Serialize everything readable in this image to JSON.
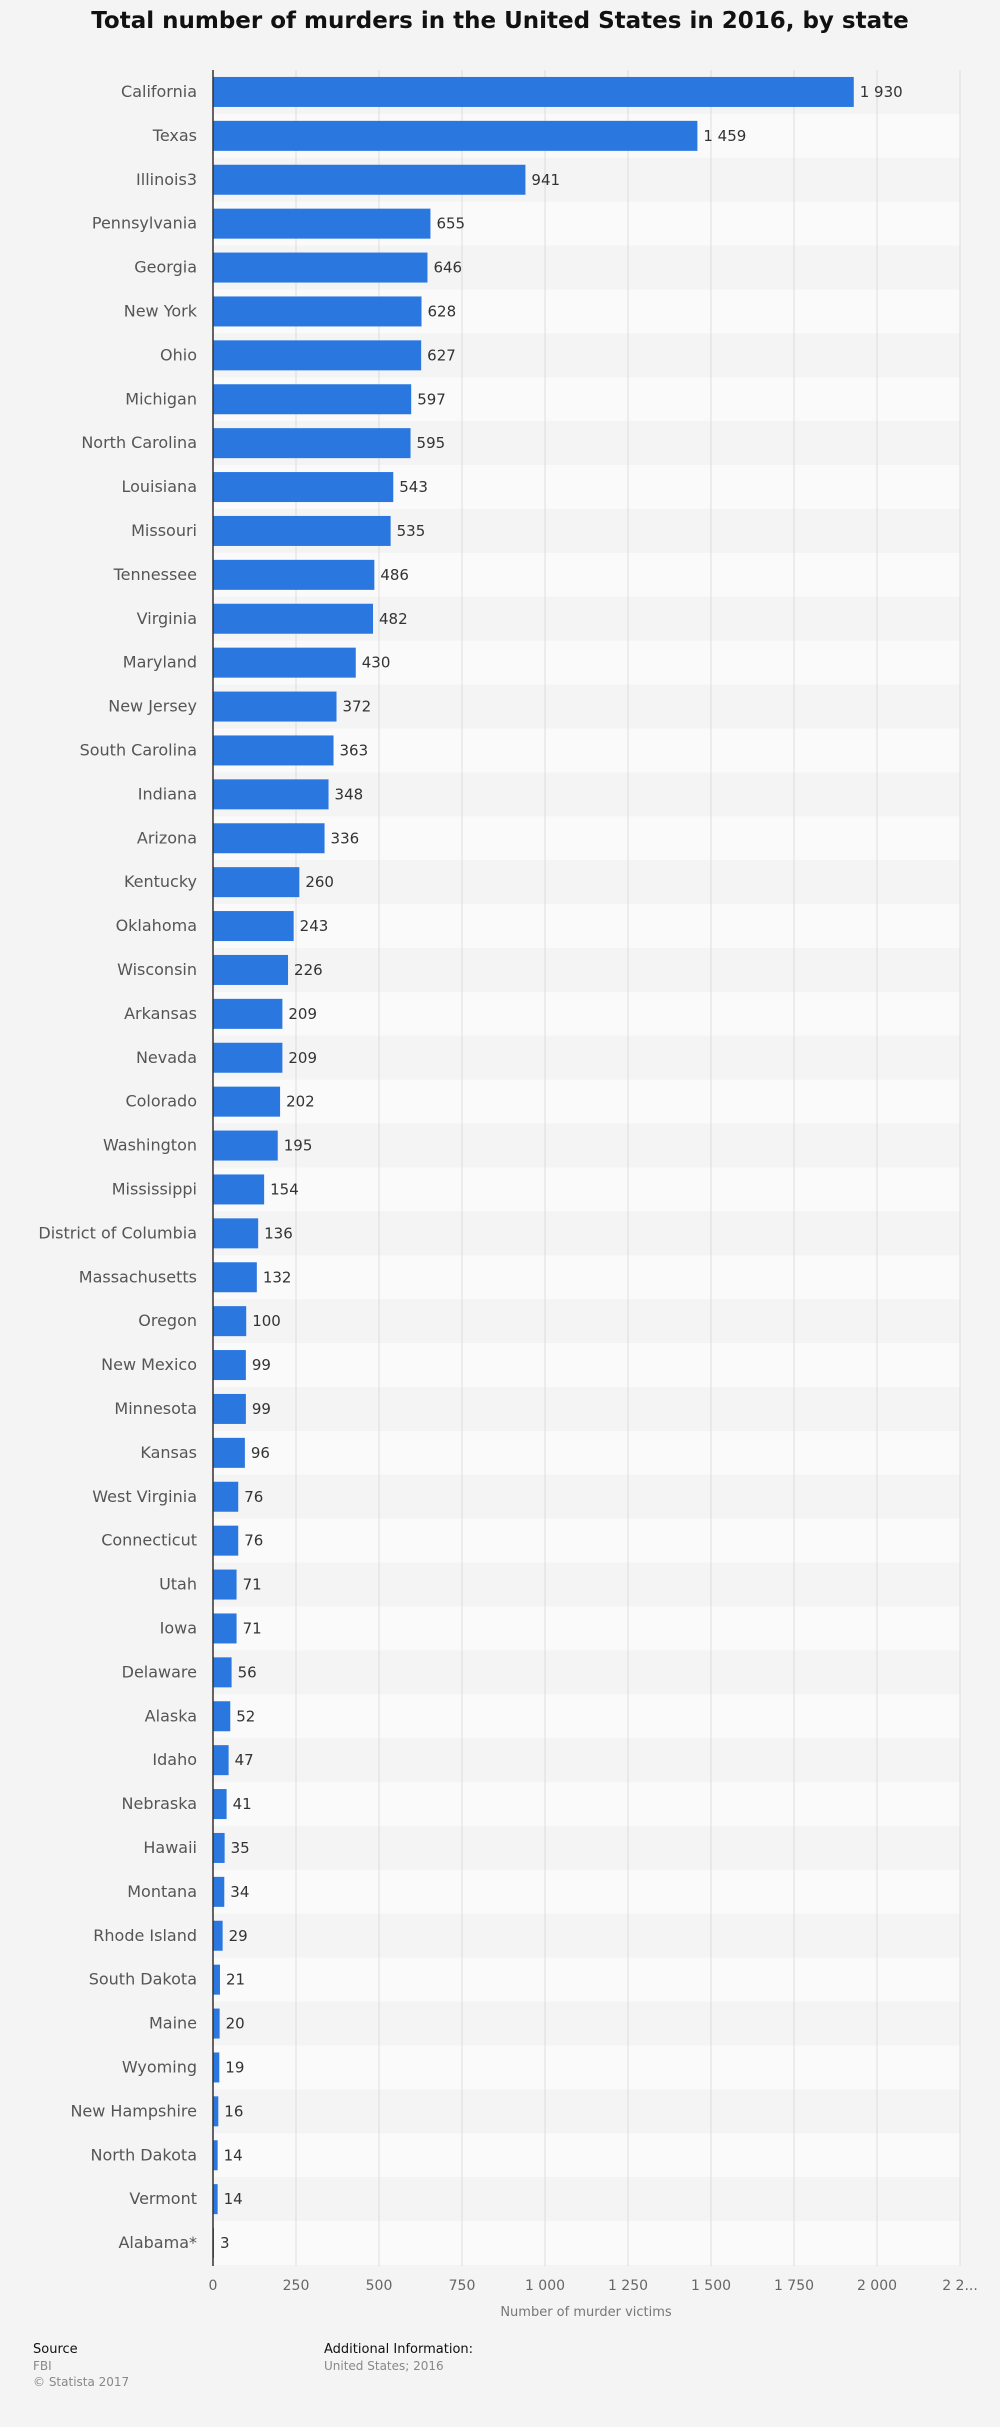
{
  "chart_data": {
    "type": "bar",
    "orientation": "horizontal",
    "title": "Total number of murders in the United States in 2016, by state",
    "xlabel": "Number of murder victims",
    "ylabel": "",
    "xlim": [
      0,
      2250
    ],
    "xticks": [
      "0",
      "250",
      "500",
      "750",
      "1 000",
      "1 250",
      "1 500",
      "1 750",
      "2 000",
      "2 2..."
    ],
    "grid": true,
    "bar_color": "#2a77e0",
    "categories": [
      "California",
      "Texas",
      "Illinois3",
      "Pennsylvania",
      "Georgia",
      "New York",
      "Ohio",
      "Michigan",
      "North Carolina",
      "Louisiana",
      "Missouri",
      "Tennessee",
      "Virginia",
      "Maryland",
      "New Jersey",
      "South Carolina",
      "Indiana",
      "Arizona",
      "Kentucky",
      "Oklahoma",
      "Wisconsin",
      "Arkansas",
      "Nevada",
      "Colorado",
      "Washington",
      "Mississippi",
      "District of Columbia",
      "Massachusetts",
      "Oregon",
      "New Mexico",
      "Minnesota",
      "Kansas",
      "West Virginia",
      "Connecticut",
      "Utah",
      "Iowa",
      "Delaware",
      "Alaska",
      "Idaho",
      "Nebraska",
      "Hawaii",
      "Montana",
      "Rhode Island",
      "South Dakota",
      "Maine",
      "Wyoming",
      "New Hampshire",
      "North Dakota",
      "Vermont",
      "Alabama*"
    ],
    "values": [
      1930,
      1459,
      941,
      655,
      646,
      628,
      627,
      597,
      595,
      543,
      535,
      486,
      482,
      430,
      372,
      363,
      348,
      336,
      260,
      243,
      226,
      209,
      209,
      202,
      195,
      154,
      136,
      132,
      100,
      99,
      99,
      96,
      76,
      76,
      71,
      71,
      56,
      52,
      47,
      41,
      35,
      34,
      29,
      21,
      20,
      19,
      16,
      14,
      14,
      3
    ],
    "value_labels": [
      "1 930",
      "1 459",
      "941",
      "655",
      "646",
      "628",
      "627",
      "597",
      "595",
      "543",
      "535",
      "486",
      "482",
      "430",
      "372",
      "363",
      "348",
      "336",
      "260",
      "243",
      "226",
      "209",
      "209",
      "202",
      "195",
      "154",
      "136",
      "132",
      "100",
      "99",
      "99",
      "96",
      "76",
      "76",
      "71",
      "71",
      "56",
      "52",
      "47",
      "41",
      "35",
      "34",
      "29",
      "21",
      "20",
      "19",
      "16",
      "14",
      "14",
      "3"
    ]
  },
  "footer": {
    "source_heading": "Source",
    "source_name": "FBI",
    "copyright": "© Statista 2017",
    "info_heading": "Additional Information:",
    "info_text": "United States; 2016"
  }
}
